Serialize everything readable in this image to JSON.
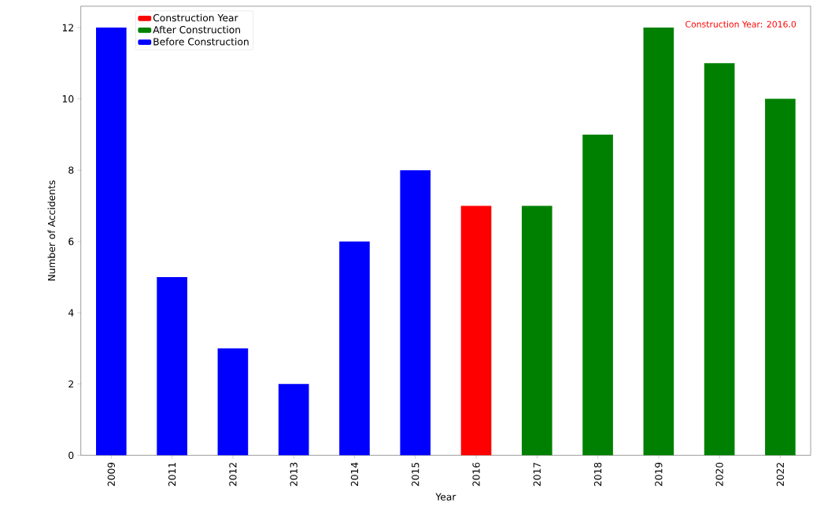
{
  "chart_data": {
    "type": "bar",
    "xlabel": "Year",
    "ylabel": "Number of Accidents",
    "categories": [
      "2009",
      "2011",
      "2012",
      "2013",
      "2014",
      "2015",
      "2016",
      "2017",
      "2018",
      "2019",
      "2020",
      "2022"
    ],
    "series": [
      {
        "name": "Construction Year",
        "color": "#ff0000",
        "values": [
          null,
          null,
          null,
          null,
          null,
          null,
          7,
          null,
          null,
          null,
          null,
          null
        ]
      },
      {
        "name": "After Construction",
        "color": "#008000",
        "values": [
          null,
          null,
          null,
          null,
          null,
          null,
          null,
          7,
          9,
          12,
          11,
          10
        ]
      },
      {
        "name": "Before Construction",
        "color": "#0000ff",
        "values": [
          12,
          5,
          3,
          2,
          6,
          8,
          null,
          null,
          null,
          null,
          null,
          null
        ]
      }
    ],
    "annotations": [
      "Construction Year: 2016.0"
    ],
    "ylim": [
      0,
      12.6
    ],
    "yticks": [
      0,
      2,
      4,
      6,
      8,
      10,
      12
    ],
    "grid": false,
    "legend": "top left"
  }
}
